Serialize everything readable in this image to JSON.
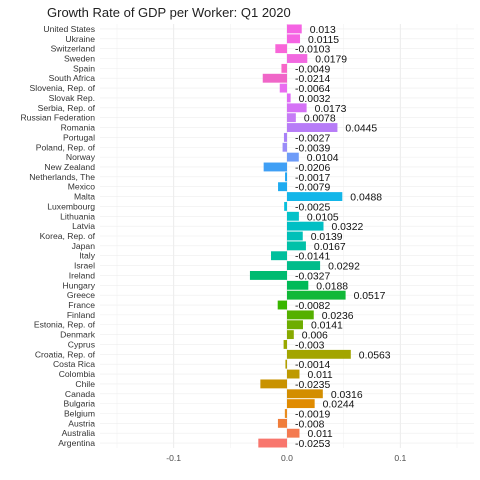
{
  "chart_data": {
    "type": "bar",
    "orientation": "horizontal",
    "title": "Growth Rate of GDP per Worker: Q1 2020",
    "xlabel": "",
    "ylabel": "",
    "xlim": [
      -0.165,
      0.165
    ],
    "xticks": [
      -0.1,
      0.0,
      0.1
    ],
    "xtick_labels": [
      "-0.1",
      "0.0",
      "0.1"
    ],
    "grid": true,
    "legend": "none",
    "categories": [
      "United States",
      "Ukraine",
      "Switzerland",
      "Sweden",
      "Spain",
      "South Africa",
      "Slovenia, Rep. of",
      "Slovak Rep.",
      "Serbia, Rep. of",
      "Russian Federation",
      "Romania",
      "Portugal",
      "Poland, Rep. of",
      "Norway",
      "New Zealand",
      "Netherlands, The",
      "Mexico",
      "Malta",
      "Luxembourg",
      "Lithuania",
      "Latvia",
      "Korea, Rep. of",
      "Japan",
      "Italy",
      "Israel",
      "Ireland",
      "Hungary",
      "Greece",
      "France",
      "Finland",
      "Estonia, Rep. of",
      "Denmark",
      "Cyprus",
      "Croatia, Rep. of",
      "Costa Rica",
      "Colombia",
      "Chile",
      "Canada",
      "Bulgaria",
      "Belgium",
      "Austria",
      "Australia",
      "Argentina"
    ],
    "values": [
      0.013,
      0.0115,
      -0.0103,
      0.0179,
      -0.0049,
      -0.0214,
      -0.0064,
      0.0032,
      0.0173,
      0.0078,
      0.0445,
      -0.0027,
      -0.0039,
      0.0104,
      -0.0206,
      -0.0017,
      -0.0079,
      0.0488,
      -0.0025,
      0.0105,
      0.0322,
      0.0139,
      0.0167,
      -0.0141,
      0.0292,
      -0.0327,
      0.0188,
      0.0517,
      -0.0082,
      0.0236,
      0.0141,
      0.006,
      -0.003,
      0.0563,
      -0.0014,
      0.011,
      -0.0235,
      0.0316,
      0.0244,
      -0.0019,
      -0.008,
      0.011,
      -0.0253
    ],
    "value_labels": [
      "0.013",
      "0.0115",
      "-0.0103",
      "0.0179",
      "-0.0049",
      "-0.0214",
      "-0.0064",
      "0.0032",
      "0.0173",
      "0.0078",
      "0.0445",
      "-0.0027",
      "-0.0039",
      "0.0104",
      "-0.0206",
      "-0.0017",
      "-0.0079",
      "0.0488",
      "-0.0025",
      "0.0105",
      "0.0322",
      "0.0139",
      "0.0167",
      "-0.0141",
      "0.0292",
      "-0.0327",
      "0.0188",
      "0.0517",
      "-0.0082",
      "0.0236",
      "0.0141",
      "0.006",
      "-0.003",
      "0.0563",
      "-0.0014",
      "0.011",
      "-0.0235",
      "0.0316",
      "0.0244",
      "-0.0019",
      "-0.008",
      "0.011",
      "-0.0253"
    ],
    "colors": [
      "#F564E3",
      "#F564E3",
      "#F866D8",
      "#F269E0",
      "#F767C8",
      "#F066C8",
      "#E96CF0",
      "#E06BF6",
      "#D572F6",
      "#C67CF6",
      "#B77CF7",
      "#A982F8",
      "#9A8CF8",
      "#6E9CF8",
      "#3F9FF5",
      "#21A6F2",
      "#1EABF0",
      "#13B6E9",
      "#0AC0DC",
      "#05C2C9",
      "#00BFC4",
      "#00C0B8",
      "#00C1A8",
      "#00BF9C",
      "#00BC8A",
      "#00BA70",
      "#00BA58",
      "#10B838",
      "#39B600",
      "#55B000",
      "#6EAD00",
      "#88AA00",
      "#99A800",
      "#A3A500",
      "#B19F00",
      "#BE9A00",
      "#C99200",
      "#D38E00",
      "#E08B00",
      "#E88C1E",
      "#F07D3A",
      "#F47A50",
      "#F8766D"
    ]
  }
}
